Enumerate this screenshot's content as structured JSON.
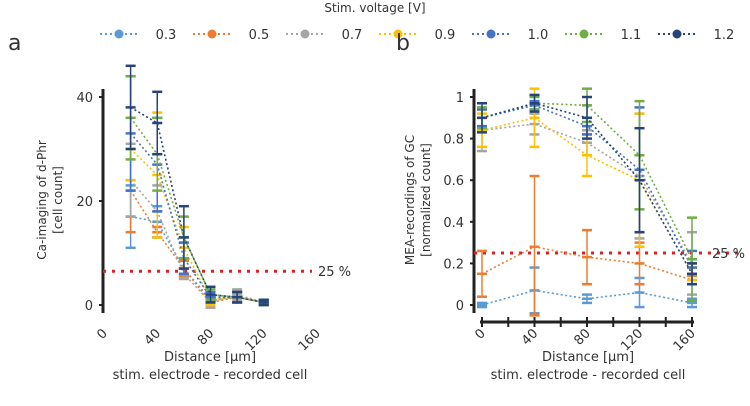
{
  "legend": {
    "title": "Stim. voltage [V]",
    "placement": "top",
    "entries": [
      {
        "name": "0.3",
        "color": "#5B9BD5"
      },
      {
        "name": "0.5",
        "color": "#ED7D31"
      },
      {
        "name": "0.7",
        "color": "#A5A5A5"
      },
      {
        "name": "0.9",
        "color": "#FFC000"
      },
      {
        "name": "1.0",
        "color": "#4472C4"
      },
      {
        "name": "1.1",
        "color": "#70AD47"
      },
      {
        "name": "1.2",
        "color": "#264478"
      }
    ]
  },
  "chart_data": [
    {
      "panel": "a",
      "type": "line",
      "ylabel": [
        "Ca-imaging of d-Phr",
        "[cell count]"
      ],
      "xlabel": [
        "Distance [µm]",
        "stim. electrode - recorded cell"
      ],
      "xlim": [
        0,
        160
      ],
      "ylim": [
        0,
        40
      ],
      "xticks": [
        "0",
        "40",
        "80",
        "120",
        "160"
      ],
      "yticks": [
        "0",
        "20",
        "40"
      ],
      "reference_line": {
        "value": 6.5,
        "label": "25 %",
        "color": "#E02020"
      },
      "x": [
        20,
        40,
        60,
        80,
        100,
        120
      ],
      "series": [
        {
          "name": "0.3",
          "values": [
            17,
            16,
            7,
            1,
            1.5,
            0.5
          ],
          "err": [
            6,
            3,
            1.5,
            1,
            1,
            0.5
          ]
        },
        {
          "name": "0.5",
          "values": [
            22,
            14,
            7,
            0.5,
            1.5,
            0.5
          ],
          "err": [
            8,
            1,
            1.5,
            1,
            1,
            0.5
          ]
        },
        {
          "name": "0.7",
          "values": [
            24,
            18,
            6,
            0.5,
            2,
            0.5
          ],
          "err": [
            7,
            5,
            1,
            1,
            1,
            0.5
          ]
        },
        {
          "name": "0.9",
          "values": [
            30,
            25,
            11,
            1,
            1.5,
            0.5
          ],
          "err": [
            6,
            12,
            4,
            1,
            1,
            0.5
          ]
        },
        {
          "name": "1.0",
          "values": [
            33,
            27,
            9,
            1.5,
            1.5,
            0.5
          ],
          "err": [
            11,
            9,
            3,
            1,
            1,
            0.5
          ]
        },
        {
          "name": "1.1",
          "values": [
            36,
            29,
            13,
            2,
            1.5,
            0.5
          ],
          "err": [
            8,
            7,
            4,
            1,
            1,
            0.5
          ]
        },
        {
          "name": "1.2",
          "values": [
            38,
            35,
            13,
            2,
            1.5,
            0.5
          ],
          "err": [
            8,
            6,
            6,
            1.5,
            1,
            0.5
          ]
        }
      ]
    },
    {
      "panel": "b",
      "type": "line",
      "ylabel": [
        "MEA-recordings of GC",
        "[normalized count]"
      ],
      "xlabel": [
        "Distance [µm]",
        "stim. electrode - recorded cell"
      ],
      "xlim": [
        0,
        160
      ],
      "ylim": [
        0,
        1
      ],
      "xticks": [
        "0",
        "40",
        "80",
        "120",
        "160"
      ],
      "yticks": [
        "0",
        "0.2",
        "0.4",
        "0.6",
        "0.8",
        "1"
      ],
      "reference_line": {
        "value": 0.25,
        "label": "25 %",
        "color": "#E02020"
      },
      "x": [
        0,
        40,
        80,
        120,
        160
      ],
      "series": [
        {
          "name": "0.3",
          "values": [
            0.0,
            0.07,
            0.03,
            0.06,
            0.01
          ],
          "err": [
            0.01,
            0.11,
            0.02,
            0.07,
            0.02
          ]
        },
        {
          "name": "0.5",
          "values": [
            0.15,
            0.28,
            0.23,
            0.2,
            0.12
          ],
          "err": [
            0.11,
            0.34,
            0.13,
            0.1,
            0.02
          ]
        },
        {
          "name": "0.7",
          "values": [
            0.84,
            0.87,
            0.78,
            0.62,
            0.2
          ],
          "err": [
            0.1,
            0.05,
            0.06,
            0.3,
            0.15
          ]
        },
        {
          "name": "0.9",
          "values": [
            0.84,
            0.9,
            0.72,
            0.6,
            0.15
          ],
          "err": [
            0.08,
            0.14,
            0.1,
            0.32,
            0.03
          ]
        },
        {
          "name": "1.0",
          "values": [
            0.9,
            0.96,
            0.86,
            0.65,
            0.18
          ],
          "err": [
            0.04,
            0.02,
            0.04,
            0.3,
            0.08
          ]
        },
        {
          "name": "1.1",
          "values": [
            0.9,
            0.97,
            0.96,
            0.72,
            0.22
          ],
          "err": [
            0.05,
            0.03,
            0.08,
            0.26,
            0.2
          ]
        },
        {
          "name": "1.2",
          "values": [
            0.9,
            0.97,
            0.9,
            0.6,
            0.15
          ],
          "err": [
            0.07,
            0.04,
            0.1,
            0.25,
            0.05
          ]
        }
      ]
    }
  ],
  "panels": {
    "a": "a",
    "b": "b"
  }
}
